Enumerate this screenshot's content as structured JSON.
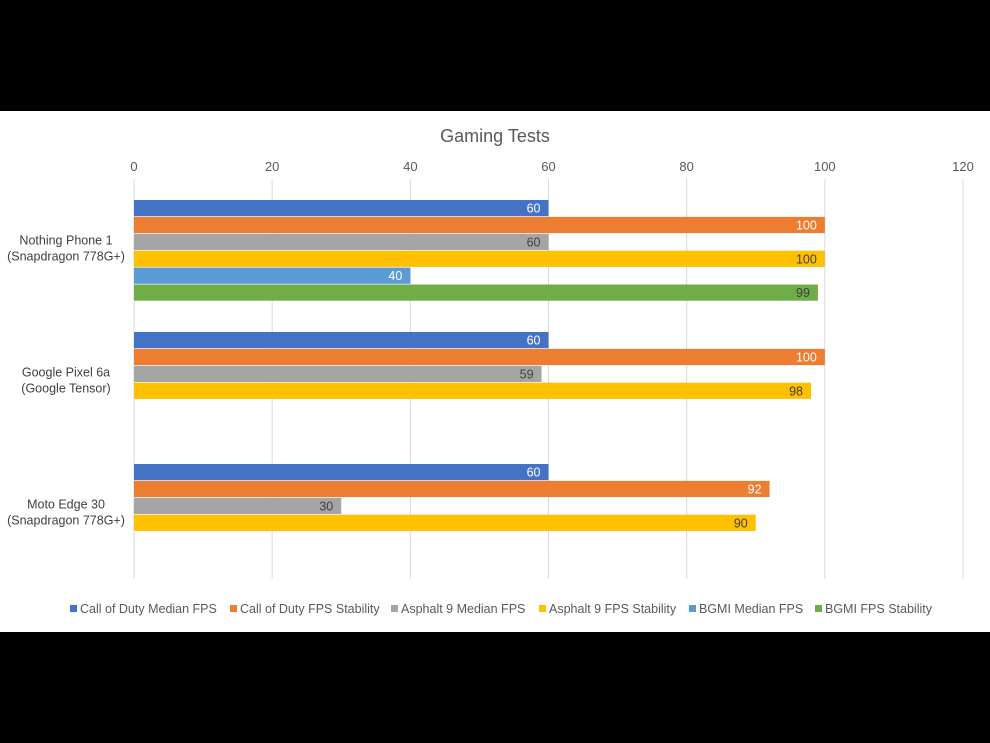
{
  "chart_data": {
    "type": "bar",
    "orientation": "horizontal",
    "title": "Gaming Tests",
    "xlim": [
      0,
      120
    ],
    "xticks": [
      0,
      20,
      40,
      60,
      80,
      100,
      120
    ],
    "grid": true,
    "legend_position": "bottom",
    "categories": [
      [
        "Nothing Phone 1",
        "(Snapdragon 778G+)"
      ],
      [
        "Google Pixel 6a",
        "(Google Tensor)"
      ],
      [
        "Moto Edge 30",
        "(Snapdragon 778G+)"
      ]
    ],
    "series": [
      {
        "name": "Call of Duty Median FPS",
        "color": "#4472c4",
        "values": [
          60,
          60,
          60
        ]
      },
      {
        "name": "Call of Duty FPS Stability",
        "color": "#ed7d31",
        "values": [
          100,
          100,
          92
        ]
      },
      {
        "name": "Asphalt 9 Median FPS",
        "color": "#a5a5a5",
        "values": [
          60,
          59,
          30
        ]
      },
      {
        "name": "Asphalt 9 FPS Stability",
        "color": "#ffc000",
        "values": [
          100,
          98,
          90
        ]
      },
      {
        "name": "BGMI Median FPS",
        "color": "#5b9bd5",
        "values": [
          40,
          null,
          null
        ]
      },
      {
        "name": "BGMI FPS Stability",
        "color": "#70ad47",
        "values": [
          99,
          null,
          null
        ]
      }
    ]
  }
}
